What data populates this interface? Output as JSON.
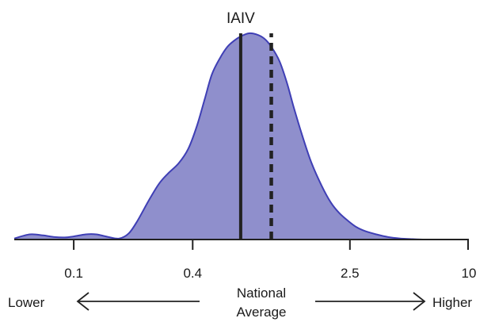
{
  "chart_data": {
    "type": "area",
    "x_scale": "log",
    "x_ticks": [
      {
        "value": 0.1,
        "label": "0.1"
      },
      {
        "value": 0.4,
        "label": "0.4"
      },
      {
        "value": 2.5,
        "label": "2.5"
      },
      {
        "value": 10,
        "label": "10"
      }
    ],
    "xlim": [
      0.05,
      10
    ],
    "ylim": [
      0,
      1
    ],
    "density": {
      "x": [
        0.05,
        0.06,
        0.07,
        0.08,
        0.09,
        0.1,
        0.115,
        0.13,
        0.15,
        0.17,
        0.19,
        0.21,
        0.24,
        0.27,
        0.3,
        0.34,
        0.38,
        0.42,
        0.46,
        0.5,
        0.55,
        0.6,
        0.65,
        0.7,
        0.77,
        0.84,
        0.92,
        1.0,
        1.1,
        1.2,
        1.3,
        1.45,
        1.6,
        1.8,
        2.0,
        2.2,
        2.45,
        2.7,
        3.0,
        3.4,
        3.9,
        4.5,
        5.2,
        6.0,
        7.0,
        8.0,
        10.0
      ],
      "y": [
        0.005,
        0.025,
        0.02,
        0.012,
        0.01,
        0.015,
        0.025,
        0.025,
        0.012,
        0.005,
        0.03,
        0.09,
        0.19,
        0.27,
        0.32,
        0.37,
        0.44,
        0.55,
        0.68,
        0.8,
        0.88,
        0.935,
        0.965,
        0.985,
        1.0,
        0.995,
        0.975,
        0.935,
        0.865,
        0.76,
        0.64,
        0.49,
        0.37,
        0.26,
        0.18,
        0.13,
        0.09,
        0.06,
        0.04,
        0.025,
        0.012,
        0.005,
        0.002,
        0.0,
        0.0,
        0.0,
        0.0
      ]
    },
    "fill_color": "#8f8fcc",
    "line_color": "#3f3fb5",
    "markers": [
      {
        "name": "IAIV",
        "value": 0.7,
        "style": "solid",
        "label": "IAIV"
      },
      {
        "name": "national-average",
        "value": 1.0,
        "style": "dashed",
        "label": ""
      }
    ],
    "scale": {
      "left_label": "Lower",
      "center_label_line1": "National",
      "center_label_line2": "Average",
      "right_label": "Higher"
    }
  }
}
